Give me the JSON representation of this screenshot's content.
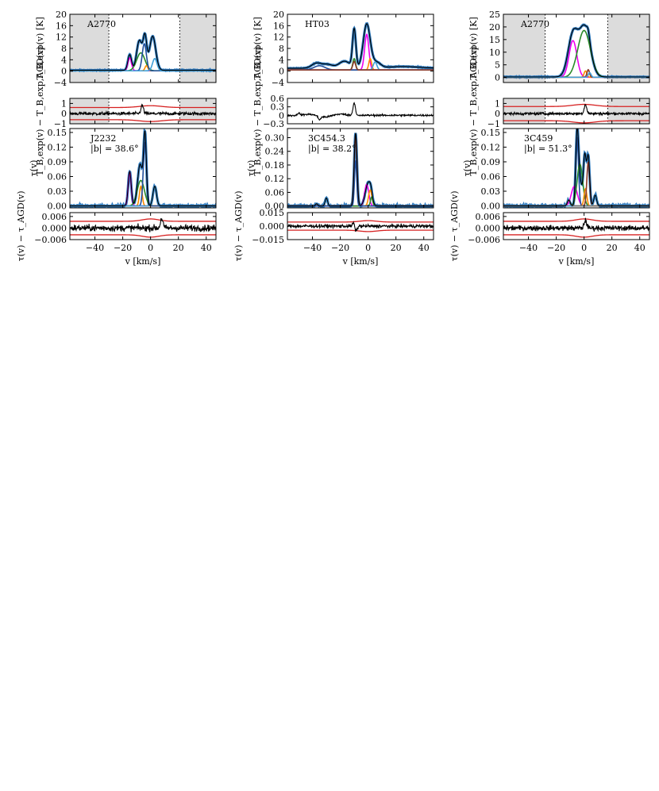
{
  "chart_data": [
    {
      "type": "line",
      "columns": [
        {
          "name": "col1",
          "xlabel": "v [km/s]",
          "xlim": [
            -58,
            47
          ],
          "xticks": [
            -40,
            -20,
            0,
            20,
            40
          ],
          "panels": [
            {
              "role": "TB",
              "source": "A2770",
              "ylabel": "T_B,exp(v) [K]",
              "ylim": [
                -4,
                20
              ],
              "yticks": [
                -4,
                0,
                4,
                8,
                12,
                16,
                20
              ],
              "shaded_x": [
                [
                  -58,
                  -30
                ],
                [
                  21,
                  47
                ]
              ],
              "dotted_x": [
                -30,
                21
              ],
              "baseline": 0.3,
              "components": [
                {
                  "color": "#ee00ee",
                  "mu": -15,
                  "sigma": 1.3,
                  "amp": 4.5
                },
                {
                  "color": "#2a8a2a",
                  "mu": -7,
                  "sigma": 3.0,
                  "amp": 6.3
                },
                {
                  "color": "#ff8c00",
                  "mu": -3,
                  "sigma": 1.0,
                  "amp": 1.8
                },
                {
                  "color": "#1f4e9c",
                  "mu": -4.5,
                  "sigma": 1.5,
                  "amp": 9.5
                },
                {
                  "color": "#3fa0d8",
                  "mu": 3,
                  "sigma": 1.6,
                  "amp": 4.3
                }
              ],
              "total": [
                {
                  "mu": -15,
                  "sigma": 1.3,
                  "amp": 5.5
                },
                {
                  "mu": -8,
                  "sigma": 2.0,
                  "amp": 10.5
                },
                {
                  "mu": -4,
                  "sigma": 1.3,
                  "amp": 11.0
                },
                {
                  "mu": 1.5,
                  "sigma": 2.2,
                  "amp": 12.0
                }
              ]
            },
            {
              "role": "TBres",
              "ylabel": "T_B,exp(v) − T_B,exp,AGD(v)",
              "ylim": [
                -1,
                1.5
              ],
              "yticks": [
                -1,
                0,
                1
              ],
              "shaded_x": [
                [
                  -58,
                  -30
                ],
                [
                  21,
                  47
                ]
              ],
              "dotted_x": [
                -30,
                21
              ],
              "noise": 0.15,
              "spike": [
                {
                  "v": -6,
                  "amp": 0.8
                }
              ],
              "envelope": 0.6
            },
            {
              "role": "tau",
              "source": "J2232",
              "latitude": "|b| = 38.6°",
              "ylabel": "τ(v)",
              "ylim": [
                -0.004,
                0.158
              ],
              "yticks": [
                0.0,
                0.03,
                0.06,
                0.09,
                0.12,
                0.15
              ],
              "components": [
                {
                  "color": "#ee00ee",
                  "mu": -15,
                  "sigma": 1.1,
                  "amp": 0.069
                },
                {
                  "color": "#2a8a2a",
                  "mu": -7,
                  "sigma": 2.6,
                  "amp": 0.052
                },
                {
                  "color": "#ff8c00",
                  "mu": -7,
                  "sigma": 1.0,
                  "amp": 0.04
                },
                {
                  "color": "#1f4e9c",
                  "mu": -4,
                  "sigma": 1.2,
                  "amp": 0.13
                },
                {
                  "color": "#3fa0d8",
                  "mu": 3,
                  "sigma": 1.3,
                  "amp": 0.04
                }
              ],
              "total": [
                {
                  "mu": -15,
                  "sigma": 1.1,
                  "amp": 0.07
                },
                {
                  "mu": -7.5,
                  "sigma": 1.8,
                  "amp": 0.085
                },
                {
                  "mu": -4,
                  "sigma": 1.0,
                  "amp": 0.14
                },
                {
                  "mu": 3,
                  "sigma": 1.3,
                  "amp": 0.04
                }
              ]
            },
            {
              "role": "taures",
              "ylabel": "τ(v) − τ_AGD(v)",
              "ylim": [
                -0.006,
                0.008
              ],
              "yticks": [
                -0.006,
                0.0,
                0.006
              ],
              "noise": 0.0016,
              "spike": [
                {
                  "v": 8,
                  "amp": 0.005
                }
              ],
              "envelope": 0.0035
            }
          ]
        },
        {
          "name": "col2",
          "xlabel": "v [km/s]",
          "xlim": [
            -58,
            47
          ],
          "xticks": [
            -40,
            -20,
            0,
            20,
            40
          ],
          "panels": [
            {
              "role": "TB",
              "source": "HT03",
              "ylabel": "T_B,exp(v) [K]",
              "ylim": [
                -4,
                20
              ],
              "yticks": [
                -4,
                0,
                4,
                8,
                12,
                16,
                20
              ],
              "shaded_x": [],
              "dotted_x": [],
              "baseline": 1.0,
              "components": [
                {
                  "color": "#2a8a2a",
                  "mu": -10,
                  "sigma": 1.0,
                  "amp": 4.0
                },
                {
                  "color": "#ee00ee",
                  "mu": -1,
                  "sigma": 1.5,
                  "amp": 12.5
                },
                {
                  "color": "#ff8c00",
                  "mu": 1.5,
                  "sigma": 1.0,
                  "amp": 4.0
                },
                {
                  "color": "#3fa0d8",
                  "mu": 5,
                  "sigma": 1.3,
                  "amp": 2.8
                },
                {
                  "color": "#1f4e9c",
                  "mu": -35,
                  "sigma": 4.0,
                  "amp": 1.5
                },
                {
                  "color": "#8b3a2a",
                  "mu": -10,
                  "sigma": 1.0,
                  "amp": 3.0
                }
              ],
              "total": [
                {
                  "mu": -37,
                  "sigma": 3.5,
                  "amp": 1.8
                },
                {
                  "mu": -29,
                  "sigma": 3.5,
                  "amp": 1.3
                },
                {
                  "mu": -17,
                  "sigma": 4.0,
                  "amp": 2.5
                },
                {
                  "mu": -10,
                  "sigma": 1.2,
                  "amp": 13.5
                },
                {
                  "mu": -1,
                  "sigma": 2.5,
                  "amp": 15.5
                },
                {
                  "mu": 6,
                  "sigma": 3.0,
                  "amp": 2.0
                },
                {
                  "mu": 25,
                  "sigma": 12.0,
                  "amp": 0.6
                }
              ]
            },
            {
              "role": "TBres",
              "ylabel": "T_B,exp(v) − T_B,exp,AGD(v)",
              "ylim": [
                -0.3,
                0.6
              ],
              "yticks": [
                -0.3,
                0.0,
                0.3,
                0.6
              ],
              "shaded_x": [],
              "dotted_x": [],
              "noise": 0.03,
              "spike": [
                {
                  "v": -10,
                  "amp": 0.45
                },
                {
                  "v": -35,
                  "amp": -0.12
                },
                {
                  "v": -50,
                  "amp": 0.08
                }
              ],
              "envelope": null
            },
            {
              "role": "tau",
              "source": "3C454.3",
              "latitude": "|b| = 38.2°",
              "ylabel": "τ(v)",
              "ylim": [
                -0.008,
                0.34
              ],
              "yticks": [
                0.0,
                0.06,
                0.12,
                0.18,
                0.24,
                0.3
              ],
              "components": [
                {
                  "color": "#3fa0d8",
                  "mu": -30,
                  "sigma": 0.9,
                  "amp": 0.035
                },
                {
                  "color": "#8b3a2a",
                  "mu": -9,
                  "sigma": 1.0,
                  "amp": 0.31
                },
                {
                  "color": "#ee00ee",
                  "mu": -1,
                  "sigma": 1.5,
                  "amp": 0.095
                },
                {
                  "color": "#ff8c00",
                  "mu": 1.5,
                  "sigma": 1.2,
                  "amp": 0.07
                },
                {
                  "color": "#2a8a2a",
                  "mu": 2.5,
                  "sigma": 0.8,
                  "amp": 0.04
                },
                {
                  "color": "#1f4e9c",
                  "mu": -9,
                  "sigma": 0.8,
                  "amp": 0.2
                }
              ],
              "total": [
                {
                  "mu": -37,
                  "sigma": 0.8,
                  "amp": 0.01
                },
                {
                  "mu": -30,
                  "sigma": 0.9,
                  "amp": 0.035
                },
                {
                  "mu": -9,
                  "sigma": 1.0,
                  "amp": 0.32
                },
                {
                  "mu": 0,
                  "sigma": 2.0,
                  "amp": 0.1
                },
                {
                  "mu": 2,
                  "sigma": 1.0,
                  "amp": 0.03
                }
              ]
            },
            {
              "role": "taures",
              "ylabel": "τ(v) − τ_AGD(v)",
              "ylim": [
                -0.015,
                0.015
              ],
              "yticks": [
                -0.015,
                0.0,
                0.015
              ],
              "noise": 0.0018,
              "spike": [
                {
                  "v": -9,
                  "amp": -0.008
                },
                {
                  "v": -10,
                  "amp": 0.006
                }
              ],
              "envelope": 0.0045
            }
          ]
        },
        {
          "name": "col3",
          "xlabel": "v [km/s]",
          "xlim": [
            -58,
            47
          ],
          "xticks": [
            -40,
            -20,
            0,
            20,
            40
          ],
          "panels": [
            {
              "role": "TB",
              "source": "A2770",
              "ylabel": "T_B,exp(v) [K]",
              "ylim": [
                -2,
                25
              ],
              "yticks": [
                0,
                5,
                10,
                15,
                20,
                25
              ],
              "shaded_x": [
                [
                  -58,
                  -28
                ],
                [
                  17,
                  47
                ]
              ],
              "dotted_x": [
                -28,
                17
              ],
              "baseline": 0.2,
              "components": [
                {
                  "color": "#ee00ee",
                  "mu": -8,
                  "sigma": 2.8,
                  "amp": 14.5
                },
                {
                  "color": "#2a8a2a",
                  "mu": 0,
                  "sigma": 4.5,
                  "amp": 18.5
                },
                {
                  "color": "#ff8c00",
                  "mu": 1,
                  "sigma": 1.0,
                  "amp": 2.5
                },
                {
                  "color": "#8b3a2a",
                  "mu": 3,
                  "sigma": 0.9,
                  "amp": 3.0
                },
                {
                  "color": "#3fa0d8",
                  "mu": 4,
                  "sigma": 1.0,
                  "amp": 1.8
                }
              ],
              "total": [
                {
                  "mu": -8,
                  "sigma": 3.5,
                  "amp": 16.5
                },
                {
                  "mu": 0.5,
                  "sigma": 4.0,
                  "amp": 19.5
                },
                {
                  "mu": 3,
                  "sigma": 1.0,
                  "amp": 2.5
                }
              ]
            },
            {
              "role": "TBres",
              "ylabel": "T_B,exp(v) − T_B,exp,AGD(v)",
              "ylim": [
                -1,
                1.5
              ],
              "yticks": [
                -1,
                0,
                1
              ],
              "shaded_x": [
                [
                  -58,
                  -28
                ],
                [
                  17,
                  47
                ]
              ],
              "dotted_x": [
                -28,
                17
              ],
              "noise": 0.12,
              "spike": [
                {
                  "v": 1,
                  "amp": 0.9
                }
              ],
              "envelope": 0.7
            },
            {
              "role": "tau",
              "source": "3C459",
              "latitude": "|b| = 51.3°",
              "ylabel": "τ(v)",
              "ylim": [
                -0.004,
                0.158
              ],
              "yticks": [
                0.0,
                0.03,
                0.06,
                0.09,
                0.12,
                0.15
              ],
              "components": [
                {
                  "color": "#ee00ee",
                  "mu": -7,
                  "sigma": 2.2,
                  "amp": 0.04
                },
                {
                  "color": "#1f4e9c",
                  "mu": -5,
                  "sigma": 1.0,
                  "amp": 0.14
                },
                {
                  "color": "#2a8a2a",
                  "mu": -3,
                  "sigma": 2.0,
                  "amp": 0.085
                },
                {
                  "color": "#ff8c00",
                  "mu": 1,
                  "sigma": 1.0,
                  "amp": 0.035
                },
                {
                  "color": "#8b3a2a",
                  "mu": 3,
                  "sigma": 1.0,
                  "amp": 0.09
                },
                {
                  "color": "#3fa0d8",
                  "mu": 8,
                  "sigma": 1.0,
                  "amp": 0.022
                },
                {
                  "color": "#777777",
                  "mu": -11,
                  "sigma": 1.0,
                  "amp": 0.012
                }
              ],
              "total": [
                {
                  "mu": -11,
                  "sigma": 1.0,
                  "amp": 0.012
                },
                {
                  "mu": -5,
                  "sigma": 1.0,
                  "amp": 0.14
                },
                {
                  "mu": -3,
                  "sigma": 1.5,
                  "amp": 0.05
                },
                {
                  "mu": 0.5,
                  "sigma": 1.0,
                  "amp": 0.1
                },
                {
                  "mu": 3,
                  "sigma": 1.0,
                  "amp": 0.1
                },
                {
                  "mu": 8,
                  "sigma": 1.0,
                  "amp": 0.022
                }
              ]
            },
            {
              "role": "taures",
              "ylabel": "τ(v) − τ_AGD(v)",
              "ylim": [
                -0.006,
                0.008
              ],
              "yticks": [
                -0.006,
                0.0,
                0.006
              ],
              "noise": 0.0013,
              "spike": [
                {
                  "v": 1,
                  "amp": 0.004
                }
              ],
              "envelope": 0.0035
            }
          ]
        }
      ]
    }
  ]
}
